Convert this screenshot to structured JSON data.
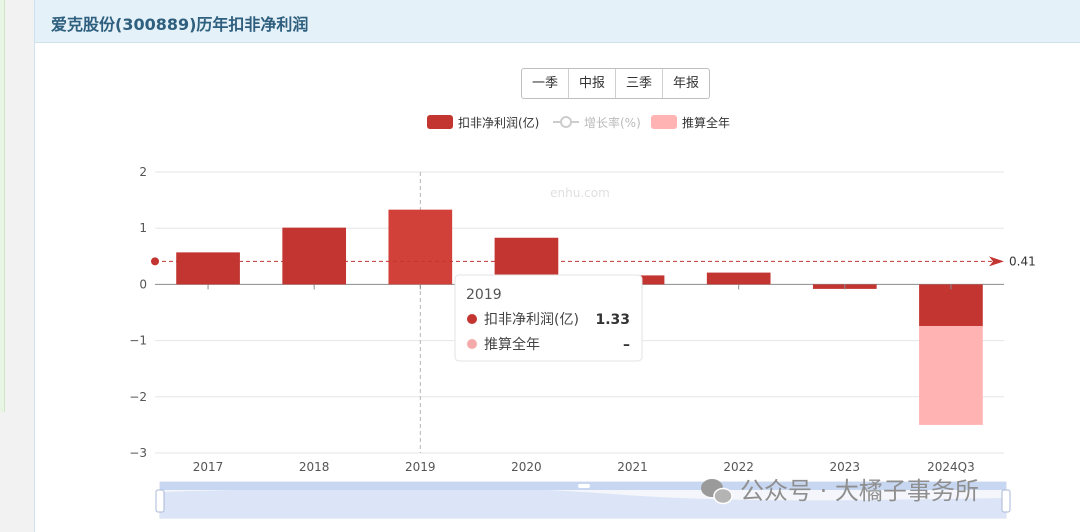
{
  "panel": {
    "title": "爱克股份(300889)历年扣非净利润"
  },
  "tabs": [
    "一季",
    "中报",
    "三季",
    "年报"
  ],
  "legend": {
    "items": [
      {
        "label": "扣非净利润(亿)",
        "color": "#c23531",
        "kind": "bar",
        "active": true
      },
      {
        "label": "增长率(%)",
        "color": "#cccccc",
        "kind": "line",
        "active": false
      },
      {
        "label": "推算全年",
        "color": "#ffb3b3",
        "kind": "bar",
        "active": true
      }
    ]
  },
  "watermark": "enhu.com",
  "footer_watermark": "公众号 · 大橘子事务所",
  "chart_data": {
    "type": "bar",
    "categories": [
      "2017",
      "2018",
      "2019",
      "2020",
      "2021",
      "2022",
      "2023",
      "2024Q3"
    ],
    "series": [
      {
        "name": "扣非净利润(亿)",
        "values": [
          0.57,
          1.01,
          1.33,
          0.83,
          0.16,
          0.21,
          -0.08,
          -0.74
        ],
        "color": "#c23531"
      },
      {
        "name": "推算全年",
        "values": [
          null,
          null,
          null,
          null,
          null,
          null,
          null,
          -1.76
        ],
        "color": "#ffb3b3",
        "stack": true
      }
    ],
    "ylim": [
      -3,
      2
    ],
    "yticks": [
      2,
      1,
      0,
      -1,
      -2,
      -3
    ],
    "mark_line": {
      "value": 0.41,
      "label": "0.41",
      "color": "#c23531"
    },
    "highlight_category": "2019",
    "grid": true,
    "legend_position": "top-center"
  },
  "tooltip": {
    "title": "2019",
    "rows": [
      {
        "label": "扣非净利润(亿)",
        "value": "1.33",
        "color": "#c23531"
      },
      {
        "label": "推算全年",
        "value": "–",
        "color": "#f5aaaa"
      }
    ]
  }
}
